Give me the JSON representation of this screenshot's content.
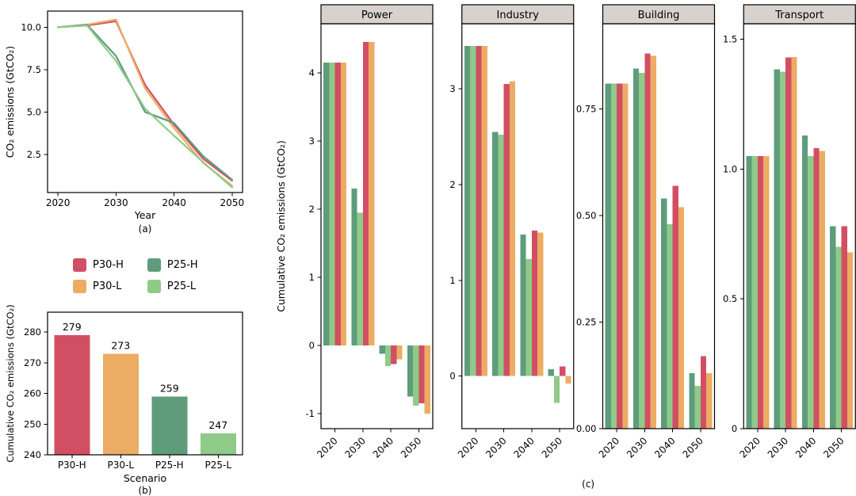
{
  "figure": {
    "background": "#ffffff",
    "captions": {
      "a": "(a)",
      "b": "(b)",
      "c": "(c)"
    }
  },
  "colors": {
    "P30-H": "#d24f63",
    "P30-L": "#ecac63",
    "P25-H": "#5f9c7c",
    "P25-L": "#8fca89",
    "strip_bg": "#d8d2cf",
    "axis": "#000000",
    "text": "#000000"
  },
  "legend": {
    "items": [
      {
        "label": "P30-H",
        "color": "P30-H"
      },
      {
        "label": "P30-L",
        "color": "P30-L"
      },
      {
        "label": "P25-H",
        "color": "P25-H"
      },
      {
        "label": "P25-L",
        "color": "P25-L"
      }
    ]
  },
  "chart_data": [
    {
      "id": "panel_a",
      "type": "line",
      "caption": "(a)",
      "xlabel": "Year",
      "ylabel": "CO₂ emissions (GtCO₂)",
      "x": [
        2020,
        2025,
        2030,
        2035,
        2040,
        2045,
        2050
      ],
      "xlim": [
        2018.2,
        2051.8
      ],
      "xticks": [
        2020,
        2030,
        2040,
        2050
      ],
      "xtick_labels": [
        "2020",
        "2030",
        "2040",
        "2050"
      ],
      "yticks": [
        2.5,
        5.0,
        7.5,
        10.0
      ],
      "ytick_labels": [
        "2.5",
        "5.0",
        "7.5",
        "10.0"
      ],
      "ylim": [
        0.25,
        10.95
      ],
      "grid": false,
      "legend_position": "below-panel",
      "series": [
        {
          "name": "P30-H",
          "values": [
            10.0,
            10.1,
            10.35,
            6.6,
            4.25,
            2.25,
            0.95
          ]
        },
        {
          "name": "P30-L",
          "values": [
            10.0,
            10.15,
            10.45,
            6.4,
            4.05,
            2.0,
            0.65
          ]
        },
        {
          "name": "P25-H",
          "values": [
            10.0,
            10.15,
            8.3,
            5.0,
            4.35,
            2.4,
            1.0
          ]
        },
        {
          "name": "P25-L",
          "values": [
            10.0,
            10.1,
            8.0,
            5.2,
            3.6,
            2.05,
            0.55
          ]
        }
      ]
    },
    {
      "id": "panel_b",
      "type": "bar",
      "caption": "(b)",
      "xlabel": "Scenario",
      "ylabel": "Cumulative CO₂ emissions (GtCO₂)",
      "categories": [
        "P30-H",
        "P30-L",
        "P25-H",
        "P25-L"
      ],
      "values": [
        279,
        273,
        259,
        247
      ],
      "bar_labels": [
        "279",
        "273",
        "259",
        "247"
      ],
      "yticks": [
        240,
        250,
        260,
        270,
        280
      ],
      "ytick_labels": [
        "240",
        "250",
        "260",
        "270",
        "280"
      ],
      "ylim": [
        240,
        286.5
      ],
      "grid": false
    },
    {
      "id": "panel_c",
      "type": "bar",
      "caption": "(c)",
      "ylabel": "Cumulative CO₂ emissions (GtCO₂)",
      "categories": [
        "2020",
        "2030",
        "2040",
        "2050"
      ],
      "series_order": [
        "P25-H",
        "P25-L",
        "P30-H",
        "P30-L"
      ],
      "grid": false,
      "facets": [
        {
          "title": "Power",
          "ylim": [
            -1.22,
            4.72
          ],
          "yticks": [
            -1,
            0,
            1,
            2,
            3,
            4
          ],
          "ytick_labels": [
            "-1",
            "0",
            "1",
            "2",
            "3",
            "4"
          ],
          "series": [
            {
              "name": "P25-H",
              "values": [
                4.15,
                2.3,
                -0.12,
                -0.75
              ]
            },
            {
              "name": "P25-L",
              "values": [
                4.15,
                1.95,
                -0.3,
                -0.88
              ]
            },
            {
              "name": "P30-H",
              "values": [
                4.15,
                4.45,
                -0.27,
                -0.85
              ]
            },
            {
              "name": "P30-L",
              "values": [
                4.15,
                4.45,
                -0.2,
                -1.0
              ]
            }
          ]
        },
        {
          "title": "Industry",
          "ylim": [
            -0.55,
            3.68
          ],
          "yticks": [
            0,
            1,
            2,
            3
          ],
          "ytick_labels": [
            "0",
            "1",
            "2",
            "3"
          ],
          "series": [
            {
              "name": "P25-H",
              "values": [
                3.45,
                2.55,
                1.48,
                0.07
              ]
            },
            {
              "name": "P25-L",
              "values": [
                3.45,
                2.52,
                1.22,
                -0.28
              ]
            },
            {
              "name": "P30-H",
              "values": [
                3.45,
                3.05,
                1.52,
                0.1
              ]
            },
            {
              "name": "P30-L",
              "values": [
                3.45,
                3.08,
                1.5,
                -0.08
              ]
            }
          ]
        },
        {
          "title": "Building",
          "ylim": [
            0,
            0.95
          ],
          "yticks": [
            0,
            0.25,
            0.5,
            0.75
          ],
          "ytick_labels": [
            "0.00",
            "0.25",
            "0.50",
            "0.75"
          ],
          "series": [
            {
              "name": "P25-H",
              "values": [
                0.81,
                0.845,
                0.54,
                0.13
              ]
            },
            {
              "name": "P25-L",
              "values": [
                0.81,
                0.835,
                0.48,
                0.1
              ]
            },
            {
              "name": "P30-H",
              "values": [
                0.81,
                0.88,
                0.57,
                0.17
              ]
            },
            {
              "name": "P30-L",
              "values": [
                0.81,
                0.875,
                0.52,
                0.13
              ]
            }
          ]
        },
        {
          "title": "Transport",
          "ylim": [
            0,
            1.56
          ],
          "yticks": [
            0,
            0.5,
            1.0,
            1.5
          ],
          "ytick_labels": [
            "0",
            "0.5",
            "1.0",
            "1.5"
          ],
          "series": [
            {
              "name": "P25-H",
              "values": [
                1.05,
                1.385,
                1.13,
                0.78
              ]
            },
            {
              "name": "P25-L",
              "values": [
                1.05,
                1.375,
                1.05,
                0.7
              ]
            },
            {
              "name": "P30-H",
              "values": [
                1.05,
                1.43,
                1.08,
                0.78
              ]
            },
            {
              "name": "P30-L",
              "values": [
                1.05,
                1.432,
                1.07,
                0.68
              ]
            }
          ]
        }
      ]
    }
  ]
}
